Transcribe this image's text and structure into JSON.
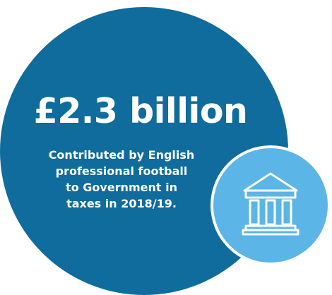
{
  "headline": {
    "amount": "£2.3 billion"
  },
  "caption": {
    "lines": [
      "Contributed by English",
      "professional football",
      "to Government in",
      "taxes in 2018/19."
    ]
  },
  "icons": {
    "badge": "government-building-icon"
  },
  "colors": {
    "primary_circle": "#0f6c9c",
    "accent_circle": "#5bb5e6",
    "text": "#ffffff"
  }
}
